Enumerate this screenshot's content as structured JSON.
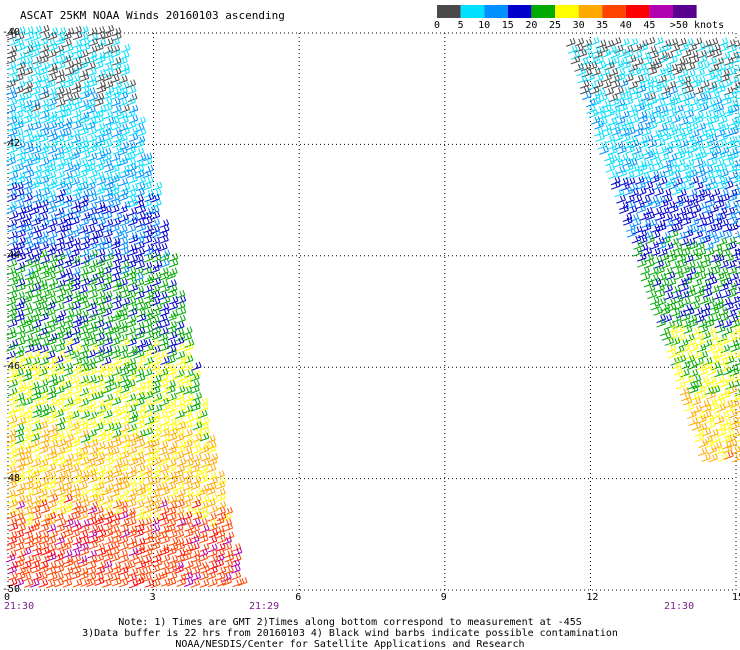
{
  "title": "ASCAT 25KM NOAA Winds 20160103 ascending",
  "colorbar": {
    "labels": [
      "0",
      "5",
      "10",
      "15",
      "20",
      "25",
      "30",
      "35",
      "40",
      "45",
      ">50 knots"
    ],
    "colors": [
      "#4a4a4a",
      "#00e0ff",
      "#0090ff",
      "#0000cc",
      "#00aa00",
      "#ffff00",
      "#ffaa00",
      "#ff4400",
      "#ff0000",
      "#b000b0",
      "#5a0090"
    ]
  },
  "map": {
    "lat_labels": [
      "-40",
      "-42",
      "-44",
      "-46",
      "-48",
      "-50"
    ],
    "lon_labels": [
      "0",
      "3",
      "6",
      "9",
      "12",
      "15"
    ],
    "time_labels": [
      "21:30",
      "21:29",
      "21:30"
    ],
    "lat_range": [
      -40,
      -50
    ],
    "lon_range": [
      0,
      15
    ]
  },
  "notes": {
    "line1": "Note: 1) Times are GMT 2)Times along bottom correspond to measurement at -45S",
    "line2": "3)Data buffer is 22 hrs from 20160103 4) Black wind barbs indicate possible contamination",
    "line3": "NOAA/NESDIS/Center for Satellite Applications and Research"
  }
}
